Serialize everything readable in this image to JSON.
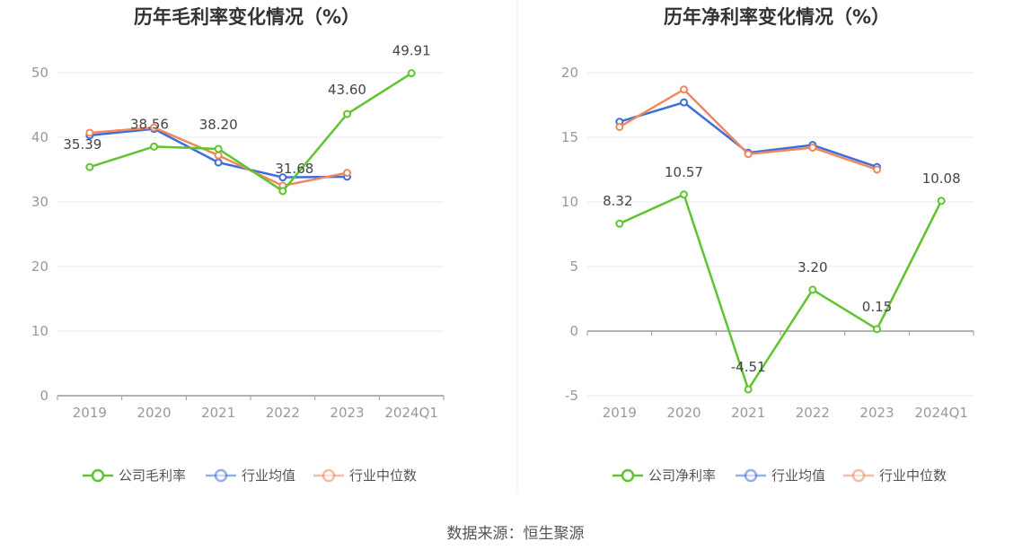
{
  "source_text": "数据来源：恒生聚源",
  "chart_data": [
    {
      "type": "line",
      "title": "历年毛利率变化情况（%）",
      "categories": [
        "2019",
        "2020",
        "2021",
        "2022",
        "2023",
        "2024Q1"
      ],
      "ylim": [
        0,
        50
      ],
      "yticks": [
        0,
        10,
        20,
        30,
        40,
        50
      ],
      "grid": true,
      "legend_position": "bottom",
      "series": [
        {
          "name": "公司毛利率",
          "color": "#5ec42f",
          "values": [
            35.39,
            38.56,
            38.2,
            31.68,
            43.6,
            49.91
          ],
          "labels": [
            "35.39",
            "38.56",
            "38.20",
            "31.68",
            "43.60",
            "49.91"
          ]
        },
        {
          "name": "行业均值",
          "color": "#3d6fd9",
          "values": [
            40.3,
            41.3,
            36.1,
            33.8,
            33.9,
            null
          ]
        },
        {
          "name": "行业中位数",
          "color": "#f0875e",
          "values": [
            40.7,
            41.5,
            37.2,
            32.5,
            34.5,
            null
          ]
        }
      ]
    },
    {
      "type": "line",
      "title": "历年净利率变化情况（%）",
      "categories": [
        "2019",
        "2020",
        "2021",
        "2022",
        "2023",
        "2024Q1"
      ],
      "ylim": [
        -5,
        20
      ],
      "yticks": [
        -5,
        0,
        5,
        10,
        15,
        20
      ],
      "grid": true,
      "legend_position": "bottom",
      "series": [
        {
          "name": "公司净利率",
          "color": "#5ec42f",
          "values": [
            8.32,
            10.57,
            -4.51,
            3.2,
            0.15,
            10.08
          ],
          "labels": [
            "8.32",
            "10.57",
            "-4.51",
            "3.20",
            "0.15",
            "10.08"
          ]
        },
        {
          "name": "行业均值",
          "color": "#3d6fd9",
          "values": [
            16.2,
            17.7,
            13.8,
            14.4,
            12.7,
            null
          ]
        },
        {
          "name": "行业中位数",
          "color": "#f0875e",
          "values": [
            15.8,
            18.7,
            13.7,
            14.2,
            12.5,
            null
          ]
        }
      ]
    }
  ]
}
